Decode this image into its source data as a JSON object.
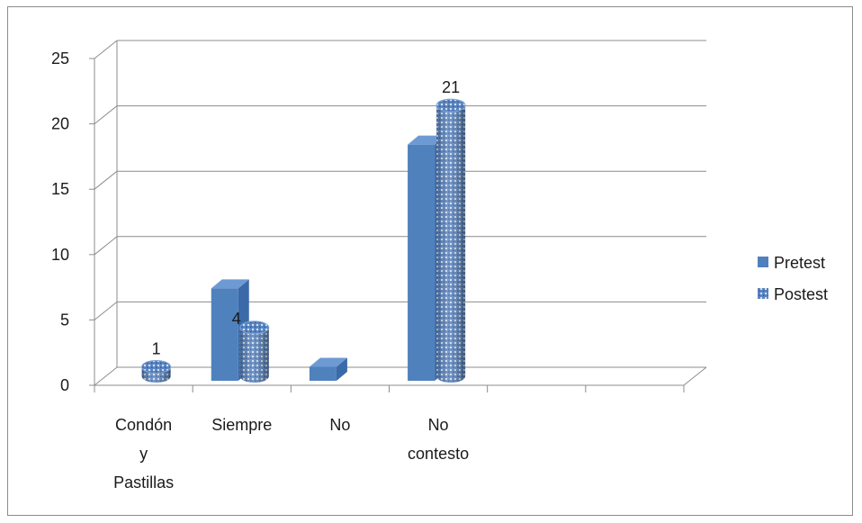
{
  "chart_data": {
    "type": "bar",
    "style": "3d-clustered-column",
    "categories": [
      [
        "Condón",
        "y",
        "Pastillas"
      ],
      [
        "Siempre"
      ],
      [
        "No"
      ],
      [
        "No",
        "contesto"
      ],
      [
        ""
      ],
      [
        ""
      ]
    ],
    "series": [
      {
        "name": "Pretest",
        "values": [
          0,
          7,
          1,
          18,
          0,
          0
        ],
        "color": "#4f81bd",
        "pattern": "solid"
      },
      {
        "name": "Postest",
        "values": [
          1,
          4,
          0,
          21,
          0,
          0
        ],
        "color": "#4f81bd",
        "pattern": "dotted"
      }
    ],
    "data_labels": {
      "Postest": [
        "1",
        "4",
        "",
        "21",
        "",
        ""
      ]
    },
    "y_ticks": [
      "0",
      "5",
      "10",
      "15",
      "20",
      "25"
    ],
    "ylim": [
      0,
      25
    ],
    "grid": true,
    "legend_position": "right"
  }
}
